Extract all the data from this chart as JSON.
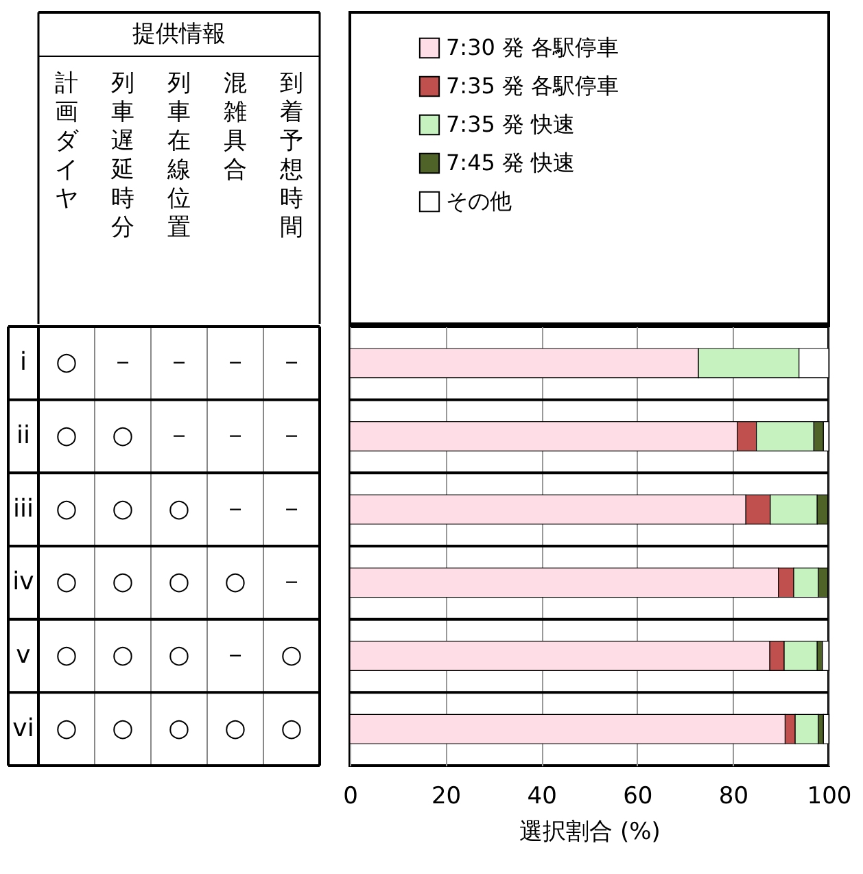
{
  "chart_data": [
    {
      "type": "other",
      "title": "提供情報",
      "categories": [
        "計画ダイヤ",
        "列車遅延時分",
        "列車在線位置",
        "混雑具合",
        "到着予想時間"
      ],
      "y_categories": [
        "i",
        "ii",
        "iii",
        "iv",
        "v",
        "vi"
      ],
      "cell_labels": [
        [
          "○",
          "－",
          "－",
          "－",
          "－"
        ],
        [
          "○",
          "○",
          "－",
          "－",
          "－"
        ],
        [
          "○",
          "○",
          "○",
          "－",
          "－"
        ],
        [
          "○",
          "○",
          "○",
          "○",
          "－"
        ],
        [
          "○",
          "○",
          "○",
          "－",
          "○"
        ],
        [
          "○",
          "○",
          "○",
          "○",
          "○"
        ]
      ]
    },
    {
      "type": "bar",
      "orientation": "horizontal",
      "stacked": true,
      "categories": [
        null,
        null,
        null,
        null,
        null,
        null
      ],
      "tick_labels": "x",
      "xlabel": "選択割合 (%)",
      "xlim": [
        0,
        100
      ],
      "xticks": [
        0,
        20,
        40,
        60,
        80,
        100
      ],
      "grid": "x",
      "legend": "top",
      "series": [
        {
          "name": "7:30 発 各駅停車",
          "color": "#ffdde6",
          "values": [
            72.8,
            80.9,
            82.7,
            89.5,
            87.7,
            90.9
          ]
        },
        {
          "name": "7:35 発 各駅停車",
          "color": "#c0504d",
          "values": [
            0,
            4,
            5.1,
            3.2,
            3,
            2.1
          ]
        },
        {
          "name": "7:35 発 快速",
          "color": "#c6f2c0",
          "values": [
            21,
            12,
            9.8,
            5.1,
            6.9,
            4.8
          ]
        },
        {
          "name": "7:45 発 快速",
          "color": "#4f6228",
          "values": [
            0,
            2,
            2.2,
            2,
            1.1,
            1.1
          ]
        },
        {
          "name": "その他",
          "color": "#ffffff",
          "values": [
            6.2,
            1.1,
            null,
            null,
            1.3,
            1.1
          ]
        }
      ]
    }
  ]
}
